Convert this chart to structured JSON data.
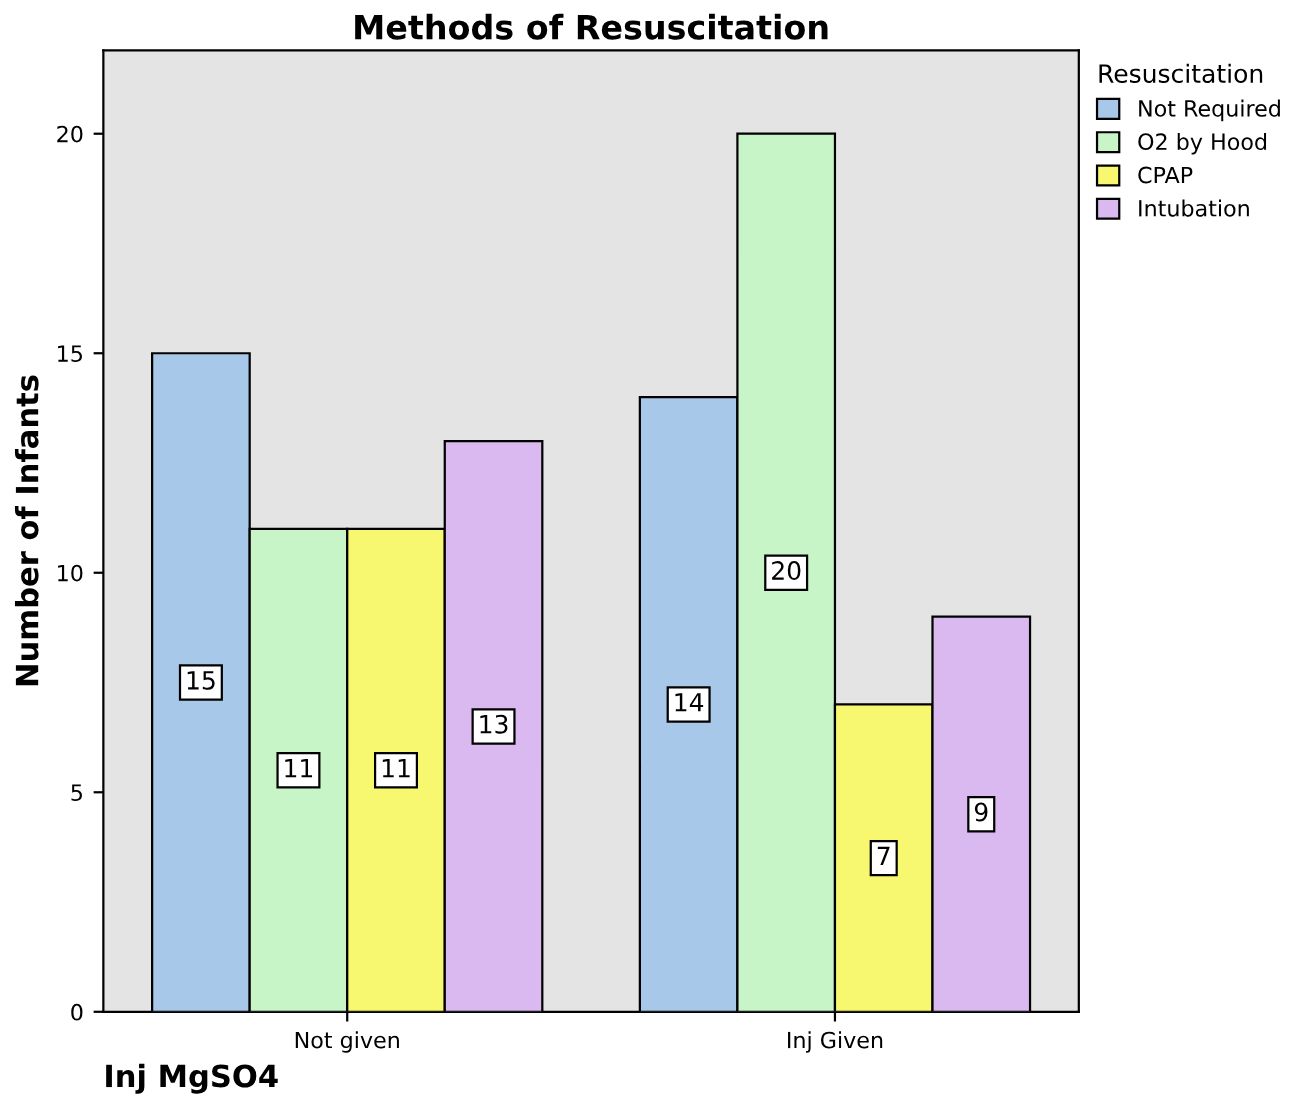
{
  "chart_data": {
    "type": "bar",
    "title": "Methods of Resuscitation",
    "xlabel": "Inj MgSO4",
    "ylabel": "Number of Infants",
    "legend_title": "Resuscitation",
    "categories": [
      "Not given",
      "Inj Given"
    ],
    "series": [
      {
        "name": "Not Required",
        "color": "#a8c8ea",
        "values": [
          15,
          14
        ]
      },
      {
        "name": "O2 by Hood",
        "color": "#c8f5c8",
        "values": [
          11,
          20
        ]
      },
      {
        "name": "CPAP",
        "color": "#f8f870",
        "values": [
          11,
          7
        ]
      },
      {
        "name": "Intubation",
        "color": "#dab8f0",
        "values": [
          13,
          9
        ]
      }
    ],
    "ylim": [
      0,
      21.9
    ],
    "yticks": [
      0,
      5,
      10,
      15,
      20
    ],
    "data_labels": true,
    "legend": "top right",
    "grid": false
  }
}
